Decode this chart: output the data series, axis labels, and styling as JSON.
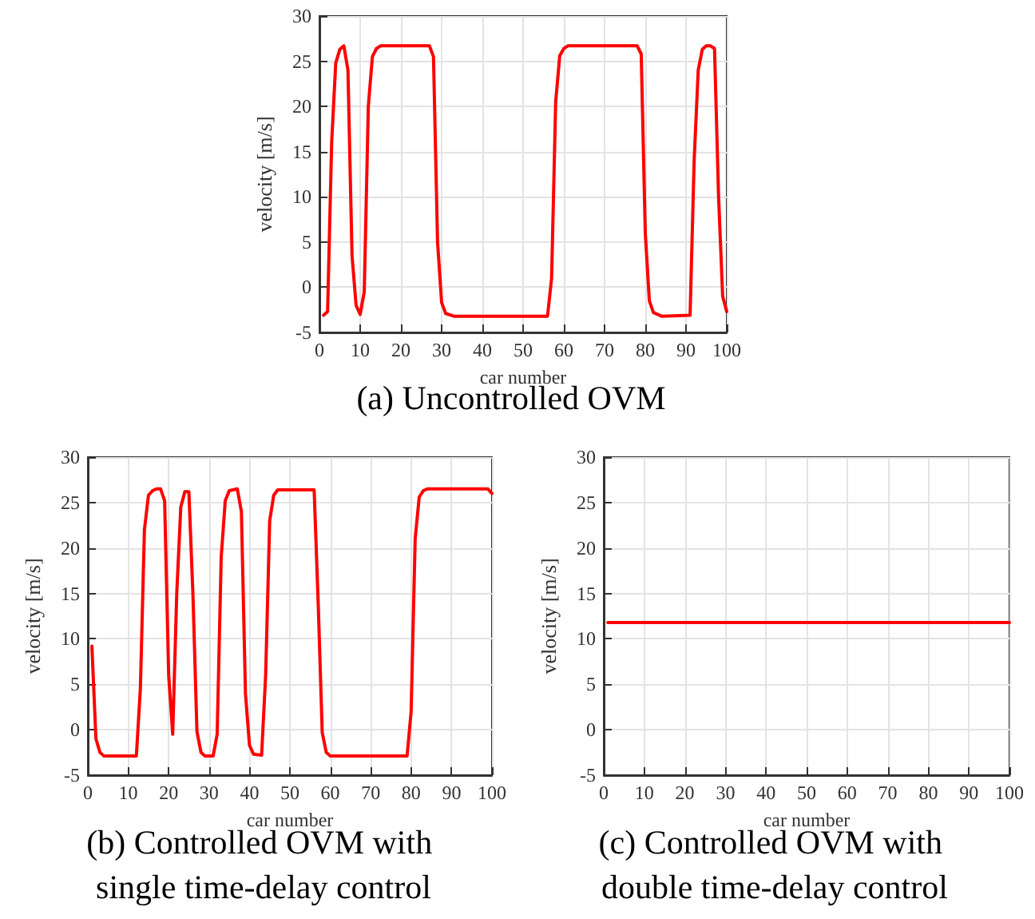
{
  "chart_data": [
    {
      "type": "line",
      "title": "(a) Uncontrolled OVM",
      "xlabel": "car number",
      "ylabel": "velocity [m/s]",
      "xlim": [
        0,
        100
      ],
      "xticks": [
        0,
        10,
        20,
        30,
        40,
        50,
        60,
        70,
        80,
        90,
        100
      ],
      "ylim": [
        -5,
        30
      ],
      "yticks": [
        -5,
        0,
        5,
        10,
        15,
        20,
        25,
        30
      ],
      "grid": true,
      "marker": "none",
      "line_style": "solid",
      "series": [
        {
          "color": "#ff0000",
          "x": [
            1,
            2,
            3,
            4,
            5,
            6,
            7,
            8,
            9,
            10,
            11,
            12,
            13,
            14,
            15,
            20,
            27,
            28,
            29,
            30,
            31,
            33,
            56,
            57,
            58,
            59,
            60,
            61,
            78,
            79,
            80,
            81,
            82,
            84,
            91,
            92,
            93,
            94,
            95,
            96,
            97,
            98,
            99,
            100
          ],
          "values": [
            -3.1,
            -2.7,
            16,
            24.8,
            26.3,
            26.7,
            24,
            3.5,
            -2,
            -3,
            -0.5,
            20,
            25.5,
            26.4,
            26.7,
            26.7,
            26.7,
            25.5,
            5,
            -1.7,
            -2.9,
            -3.2,
            -3.2,
            1,
            20.5,
            25.6,
            26.4,
            26.7,
            26.7,
            25.8,
            6,
            -1.5,
            -2.8,
            -3.2,
            -3.1,
            14,
            24,
            26.3,
            26.7,
            26.7,
            26.4,
            10,
            -1,
            -2.7
          ]
        }
      ]
    },
    {
      "type": "line",
      "title": "(b) Controlled OVM with single time-delay control",
      "xlabel": "car number",
      "ylabel": "velocity [m/s]",
      "xlim": [
        0,
        100
      ],
      "xticks": [
        0,
        10,
        20,
        30,
        40,
        50,
        60,
        70,
        80,
        90,
        100
      ],
      "ylim": [
        -5,
        30
      ],
      "yticks": [
        -5,
        0,
        5,
        10,
        15,
        20,
        25,
        30
      ],
      "grid": true,
      "marker": "none",
      "line_style": "solid",
      "series": [
        {
          "color": "#ff0000",
          "x": [
            1,
            2,
            3,
            4,
            12,
            13,
            14,
            15,
            16,
            17,
            18,
            19,
            20,
            21,
            22,
            23,
            24,
            25,
            26,
            27,
            28,
            29,
            31,
            32,
            33,
            34,
            35,
            37,
            38,
            39,
            40,
            41,
            43,
            44,
            45,
            46,
            47,
            56,
            57,
            58,
            59,
            60,
            79,
            80,
            81,
            82,
            83,
            84,
            99,
            100
          ],
          "values": [
            9.2,
            -1,
            -2.5,
            -2.9,
            -2.9,
            4.5,
            22,
            25.8,
            26.3,
            26.5,
            26.5,
            25.2,
            6,
            -0.5,
            15,
            24.5,
            26.2,
            26.2,
            15,
            -0.2,
            -2.5,
            -2.9,
            -2.9,
            -0.5,
            19,
            25.2,
            26.3,
            26.5,
            24,
            4,
            -1.7,
            -2.7,
            -2.8,
            6,
            23,
            25.8,
            26.4,
            26.4,
            14,
            -0.3,
            -2.5,
            -2.9,
            -2.9,
            2,
            21,
            25.6,
            26.3,
            26.5,
            26.5,
            26
          ]
        }
      ]
    },
    {
      "type": "line",
      "title": "(c) Controlled OVM with double time-delay control",
      "xlabel": "car number",
      "ylabel": "velocity [m/s]",
      "xlim": [
        0,
        100
      ],
      "xticks": [
        0,
        10,
        20,
        30,
        40,
        50,
        60,
        70,
        80,
        90,
        100
      ],
      "ylim": [
        -5,
        30
      ],
      "yticks": [
        -5,
        0,
        5,
        10,
        15,
        20,
        25,
        30
      ],
      "grid": true,
      "marker": "none",
      "line_style": "solid",
      "series": [
        {
          "color": "#ff0000",
          "x": [
            1,
            100
          ],
          "values": [
            11.8,
            11.8
          ]
        }
      ]
    }
  ]
}
